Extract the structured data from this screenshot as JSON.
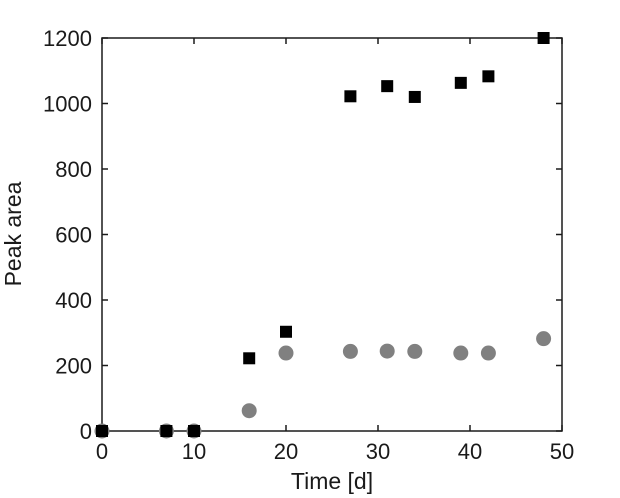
{
  "chart_data": {
    "type": "scatter",
    "xlabel": "Time [d]",
    "ylabel": "Peak area",
    "xlim": [
      0,
      50
    ],
    "ylim": [
      0,
      1200
    ],
    "xticks": [
      0,
      10,
      20,
      30,
      40,
      50
    ],
    "yticks": [
      0,
      200,
      400,
      600,
      800,
      1000,
      1200
    ],
    "grid": false,
    "legend": false,
    "series": [
      {
        "marker": "square",
        "color": "#000000",
        "x": [
          0,
          7,
          10,
          16,
          20,
          27,
          31,
          34,
          39,
          42,
          48
        ],
        "y": [
          0,
          0,
          0,
          222,
          303,
          1022,
          1053,
          1020,
          1063,
          1083,
          1200
        ]
      },
      {
        "marker": "circle",
        "color": "#808080",
        "x": [
          0,
          7,
          10,
          16,
          20,
          27,
          31,
          34,
          39,
          42,
          48
        ],
        "y": [
          0,
          0,
          0,
          62,
          238,
          243,
          244,
          243,
          238,
          238,
          282
        ]
      }
    ]
  }
}
